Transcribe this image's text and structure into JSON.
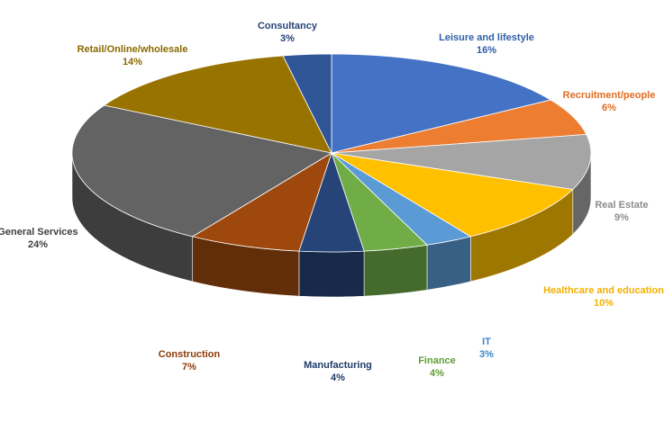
{
  "chart_data": {
    "type": "pie",
    "style": "3d-tilted",
    "title": "",
    "slices": [
      {
        "label": "Leisure and lifestyle",
        "value": 16,
        "value_label": "16%",
        "color": "#4472C4",
        "label_color": "#2E5FA8"
      },
      {
        "label": "Recruitment/people",
        "value": 6,
        "value_label": "6%",
        "color": "#ED7D31",
        "label_color": "#E06C1F"
      },
      {
        "label": "Real Estate",
        "value": 9,
        "value_label": "9%",
        "color": "#A5A5A5",
        "label_color": "#8C8C8C"
      },
      {
        "label": "Healthcare and education",
        "value": 10,
        "value_label": "10%",
        "color": "#FFC000",
        "label_color": "#F2B000"
      },
      {
        "label": "IT",
        "value": 3,
        "value_label": "3%",
        "color": "#5B9BD5",
        "label_color": "#3E84C8"
      },
      {
        "label": "Finance",
        "value": 4,
        "value_label": "4%",
        "color": "#70AD47",
        "label_color": "#5E9C36"
      },
      {
        "label": "Manufacturing",
        "value": 4,
        "value_label": "4%",
        "color": "#264478",
        "label_color": "#1F3A68"
      },
      {
        "label": "Construction",
        "value": 7,
        "value_label": "7%",
        "color": "#9E480E",
        "label_color": "#8A3C08"
      },
      {
        "label": "General Services",
        "value": 24,
        "value_label": "24%",
        "color": "#636363",
        "label_color": "#404040"
      },
      {
        "label": "Retail/Online/wholesale",
        "value": 14,
        "value_label": "14%",
        "color": "#997300",
        "label_color": "#8A6A00"
      },
      {
        "label": "Consultancy",
        "value": 3,
        "value_label": "3%",
        "color": "#2F5597",
        "label_color": "#264478"
      }
    ]
  }
}
